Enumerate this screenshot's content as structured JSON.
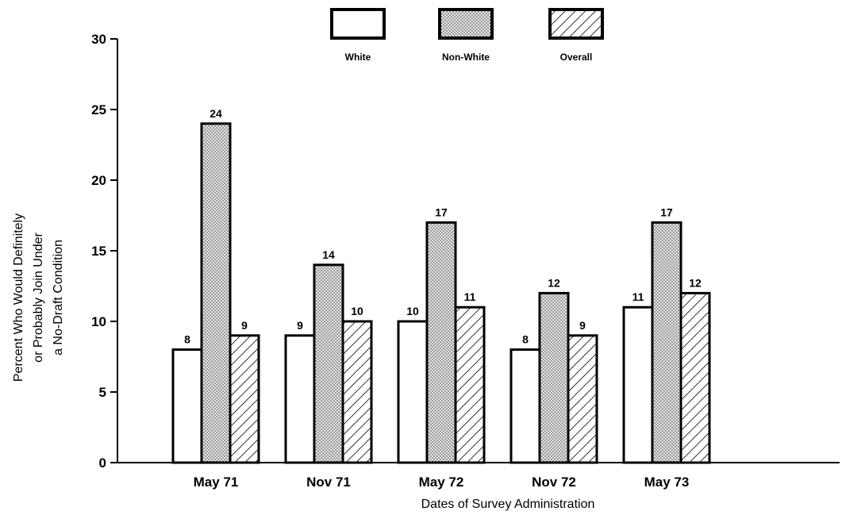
{
  "chart_data": {
    "type": "bar",
    "categories": [
      "May 71",
      "Nov 71",
      "May 72",
      "Nov 72",
      "May 73"
    ],
    "series": [
      {
        "name": "White",
        "values": [
          8,
          9,
          10,
          8,
          11
        ],
        "pattern": "plain"
      },
      {
        "name": "Non-White",
        "values": [
          24,
          14,
          17,
          12,
          17
        ],
        "pattern": "dotted"
      },
      {
        "name": "Overall",
        "values": [
          9,
          10,
          11,
          9,
          12
        ],
        "pattern": "hatched"
      }
    ],
    "xlabel": "Dates of Survey Administration",
    "ylabel_lines": [
      "Percent Who Would Definitely",
      "or Probably Join Under",
      "a No-Draft Condition"
    ],
    "ylim": [
      0,
      30
    ],
    "yticks": [
      0,
      5,
      10,
      15,
      20,
      25,
      30
    ],
    "grid": false,
    "legend_position": "top-center",
    "colors": {
      "ink": "#000000",
      "fill": "#ffffff",
      "stipple": "#d8d8d8"
    }
  }
}
